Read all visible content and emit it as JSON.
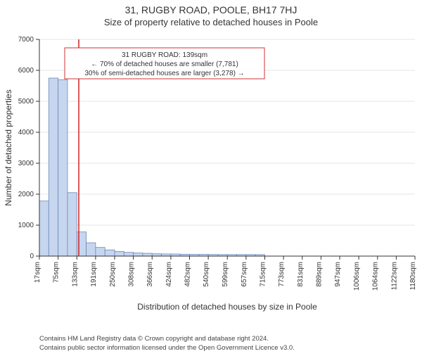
{
  "title": "31, RUGBY ROAD, POOLE, BH17 7HJ",
  "subtitle": "Size of property relative to detached houses in Poole",
  "xlabel": "Distribution of detached houses by size in Poole",
  "ylabel": "Number of detached properties",
  "footer_line1": "Contains HM Land Registry data © Crown copyright and database right 2024.",
  "footer_line2": "Contains public sector information licensed under the Open Government Licence v3.0.",
  "annotation": {
    "line1": "31 RUGBY ROAD: 139sqm",
    "line2": "← 70% of detached houses are smaller (7,781)",
    "line3": "30% of semi-detached houses are larger (3,278) →",
    "border_color": "#cc3333",
    "text_color": "#222222",
    "fontsize": 10
  },
  "chart": {
    "type": "histogram",
    "xlim": [
      17,
      1180
    ],
    "ylim": [
      0,
      7000
    ],
    "ytick_step": 1000,
    "x_ticks": [
      17,
      75,
      133,
      191,
      250,
      308,
      366,
      424,
      482,
      540,
      599,
      657,
      715,
      773,
      831,
      889,
      947,
      1006,
      1064,
      1122,
      1180
    ],
    "x_tick_suffix": "sqm",
    "marker_x": 139,
    "marker_color": "#cc2222",
    "bar_fill": "#c7d6ef",
    "bar_stroke": "#6b88b8",
    "grid_color": "#e5e5e5",
    "axis_color": "#333333",
    "background": "#ffffff",
    "tick_fontsize": 10,
    "label_fontsize": 12,
    "bars": [
      {
        "x0": 17,
        "x1": 46,
        "count": 1780
      },
      {
        "x0": 46,
        "x1": 75,
        "count": 5750
      },
      {
        "x0": 75,
        "x1": 104,
        "count": 5700
      },
      {
        "x0": 104,
        "x1": 133,
        "count": 2050
      },
      {
        "x0": 133,
        "x1": 162,
        "count": 780
      },
      {
        "x0": 162,
        "x1": 191,
        "count": 430
      },
      {
        "x0": 191,
        "x1": 220,
        "count": 280
      },
      {
        "x0": 220,
        "x1": 250,
        "count": 200
      },
      {
        "x0": 250,
        "x1": 279,
        "count": 150
      },
      {
        "x0": 279,
        "x1": 308,
        "count": 120
      },
      {
        "x0": 308,
        "x1": 337,
        "count": 100
      },
      {
        "x0": 337,
        "x1": 366,
        "count": 90
      },
      {
        "x0": 366,
        "x1": 395,
        "count": 75
      },
      {
        "x0": 395,
        "x1": 424,
        "count": 70
      },
      {
        "x0": 424,
        "x1": 453,
        "count": 68
      },
      {
        "x0": 453,
        "x1": 482,
        "count": 60
      },
      {
        "x0": 482,
        "x1": 511,
        "count": 55
      },
      {
        "x0": 511,
        "x1": 540,
        "count": 55
      },
      {
        "x0": 540,
        "x1": 570,
        "count": 52
      },
      {
        "x0": 570,
        "x1": 599,
        "count": 50
      },
      {
        "x0": 599,
        "x1": 628,
        "count": 50
      },
      {
        "x0": 628,
        "x1": 657,
        "count": 50
      },
      {
        "x0": 657,
        "x1": 686,
        "count": 50
      },
      {
        "x0": 686,
        "x1": 715,
        "count": 48
      },
      {
        "x0": 715,
        "x1": 744,
        "count": 0
      },
      {
        "x0": 744,
        "x1": 773,
        "count": 0
      }
    ]
  }
}
